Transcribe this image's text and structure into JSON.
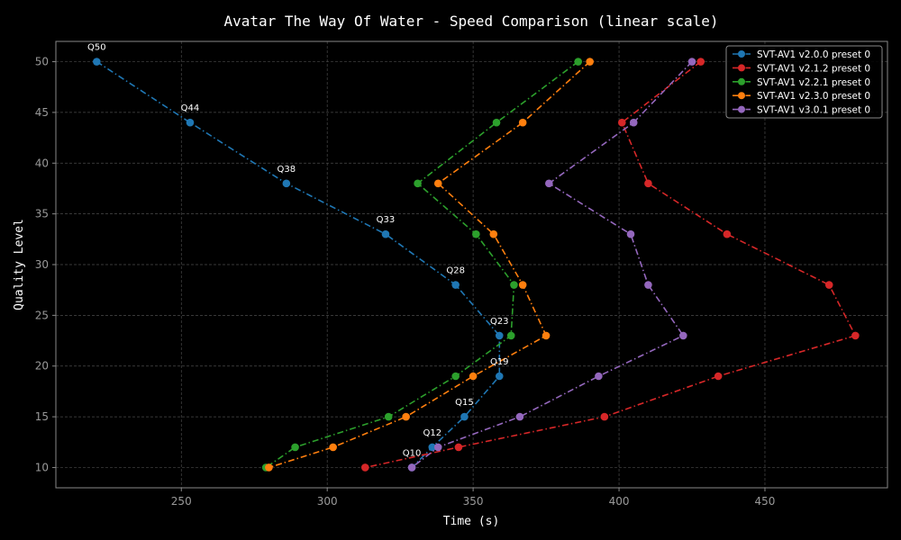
{
  "chart_data": {
    "type": "line",
    "title": "Avatar The Way Of Water - Speed Comparison (linear scale)",
    "xlabel": "Time (s)",
    "ylabel": "Quality Level",
    "xlim": [
      207,
      492
    ],
    "ylim": [
      8,
      52
    ],
    "xticks": [
      250,
      300,
      350,
      400,
      450
    ],
    "yticks": [
      10,
      15,
      20,
      25,
      30,
      35,
      40,
      45,
      50
    ],
    "grid": true,
    "line_style": "dash-dot",
    "legend_position": "top-right",
    "series": [
      {
        "name": "SVT-AV1 v2.0.0 preset 0",
        "color": "#1f77b4",
        "points": [
          [
            221,
            50
          ],
          [
            253,
            44
          ],
          [
            286,
            38
          ],
          [
            320,
            33
          ],
          [
            344,
            28
          ],
          [
            359,
            23
          ],
          [
            359,
            19
          ],
          [
            347,
            15
          ],
          [
            336,
            12
          ],
          [
            329,
            10
          ]
        ]
      },
      {
        "name": "SVT-AV1 v2.1.2 preset 0",
        "color": "#d62728",
        "points": [
          [
            428,
            50
          ],
          [
            401,
            44
          ],
          [
            410,
            38
          ],
          [
            437,
            33
          ],
          [
            472,
            28
          ],
          [
            481,
            23
          ],
          [
            434,
            19
          ],
          [
            395,
            15
          ],
          [
            345,
            12
          ],
          [
            313,
            10
          ]
        ]
      },
      {
        "name": "SVT-AV1 v2.2.1 preset 0",
        "color": "#2ca02c",
        "points": [
          [
            386,
            50
          ],
          [
            358,
            44
          ],
          [
            331,
            38
          ],
          [
            351,
            33
          ],
          [
            364,
            28
          ],
          [
            363,
            23
          ],
          [
            344,
            19
          ],
          [
            321,
            15
          ],
          [
            289,
            12
          ],
          [
            279,
            10
          ]
        ]
      },
      {
        "name": "SVT-AV1 v2.3.0 preset 0",
        "color": "#ff7f0e",
        "points": [
          [
            390,
            50
          ],
          [
            367,
            44
          ],
          [
            338,
            38
          ],
          [
            357,
            33
          ],
          [
            367,
            28
          ],
          [
            375,
            23
          ],
          [
            350,
            19
          ],
          [
            327,
            15
          ],
          [
            302,
            12
          ],
          [
            280,
            10
          ]
        ]
      },
      {
        "name": "SVT-AV1 v3.0.1 preset 0",
        "color": "#9467bd",
        "points": [
          [
            425,
            50
          ],
          [
            405,
            44
          ],
          [
            376,
            38
          ],
          [
            404,
            33
          ],
          [
            410,
            28
          ],
          [
            422,
            23
          ],
          [
            393,
            19
          ],
          [
            366,
            15
          ],
          [
            338,
            12
          ],
          [
            329,
            10
          ]
        ]
      }
    ],
    "annotations": [
      {
        "text": "Q50",
        "x": 221,
        "y": 50
      },
      {
        "text": "Q44",
        "x": 253,
        "y": 44
      },
      {
        "text": "Q38",
        "x": 286,
        "y": 38
      },
      {
        "text": "Q33",
        "x": 320,
        "y": 33
      },
      {
        "text": "Q28",
        "x": 344,
        "y": 28
      },
      {
        "text": "Q23",
        "x": 359,
        "y": 23
      },
      {
        "text": "Q19",
        "x": 359,
        "y": 19
      },
      {
        "text": "Q15",
        "x": 347,
        "y": 15
      },
      {
        "text": "Q12",
        "x": 336,
        "y": 12
      },
      {
        "text": "Q10",
        "x": 329,
        "y": 10
      }
    ],
    "colors": {
      "background": "#000000",
      "grid": "#4a4a4a",
      "axis": "#888888",
      "tick_text": "#999999",
      "text": "#ffffff",
      "legend_border": "#888888"
    }
  }
}
